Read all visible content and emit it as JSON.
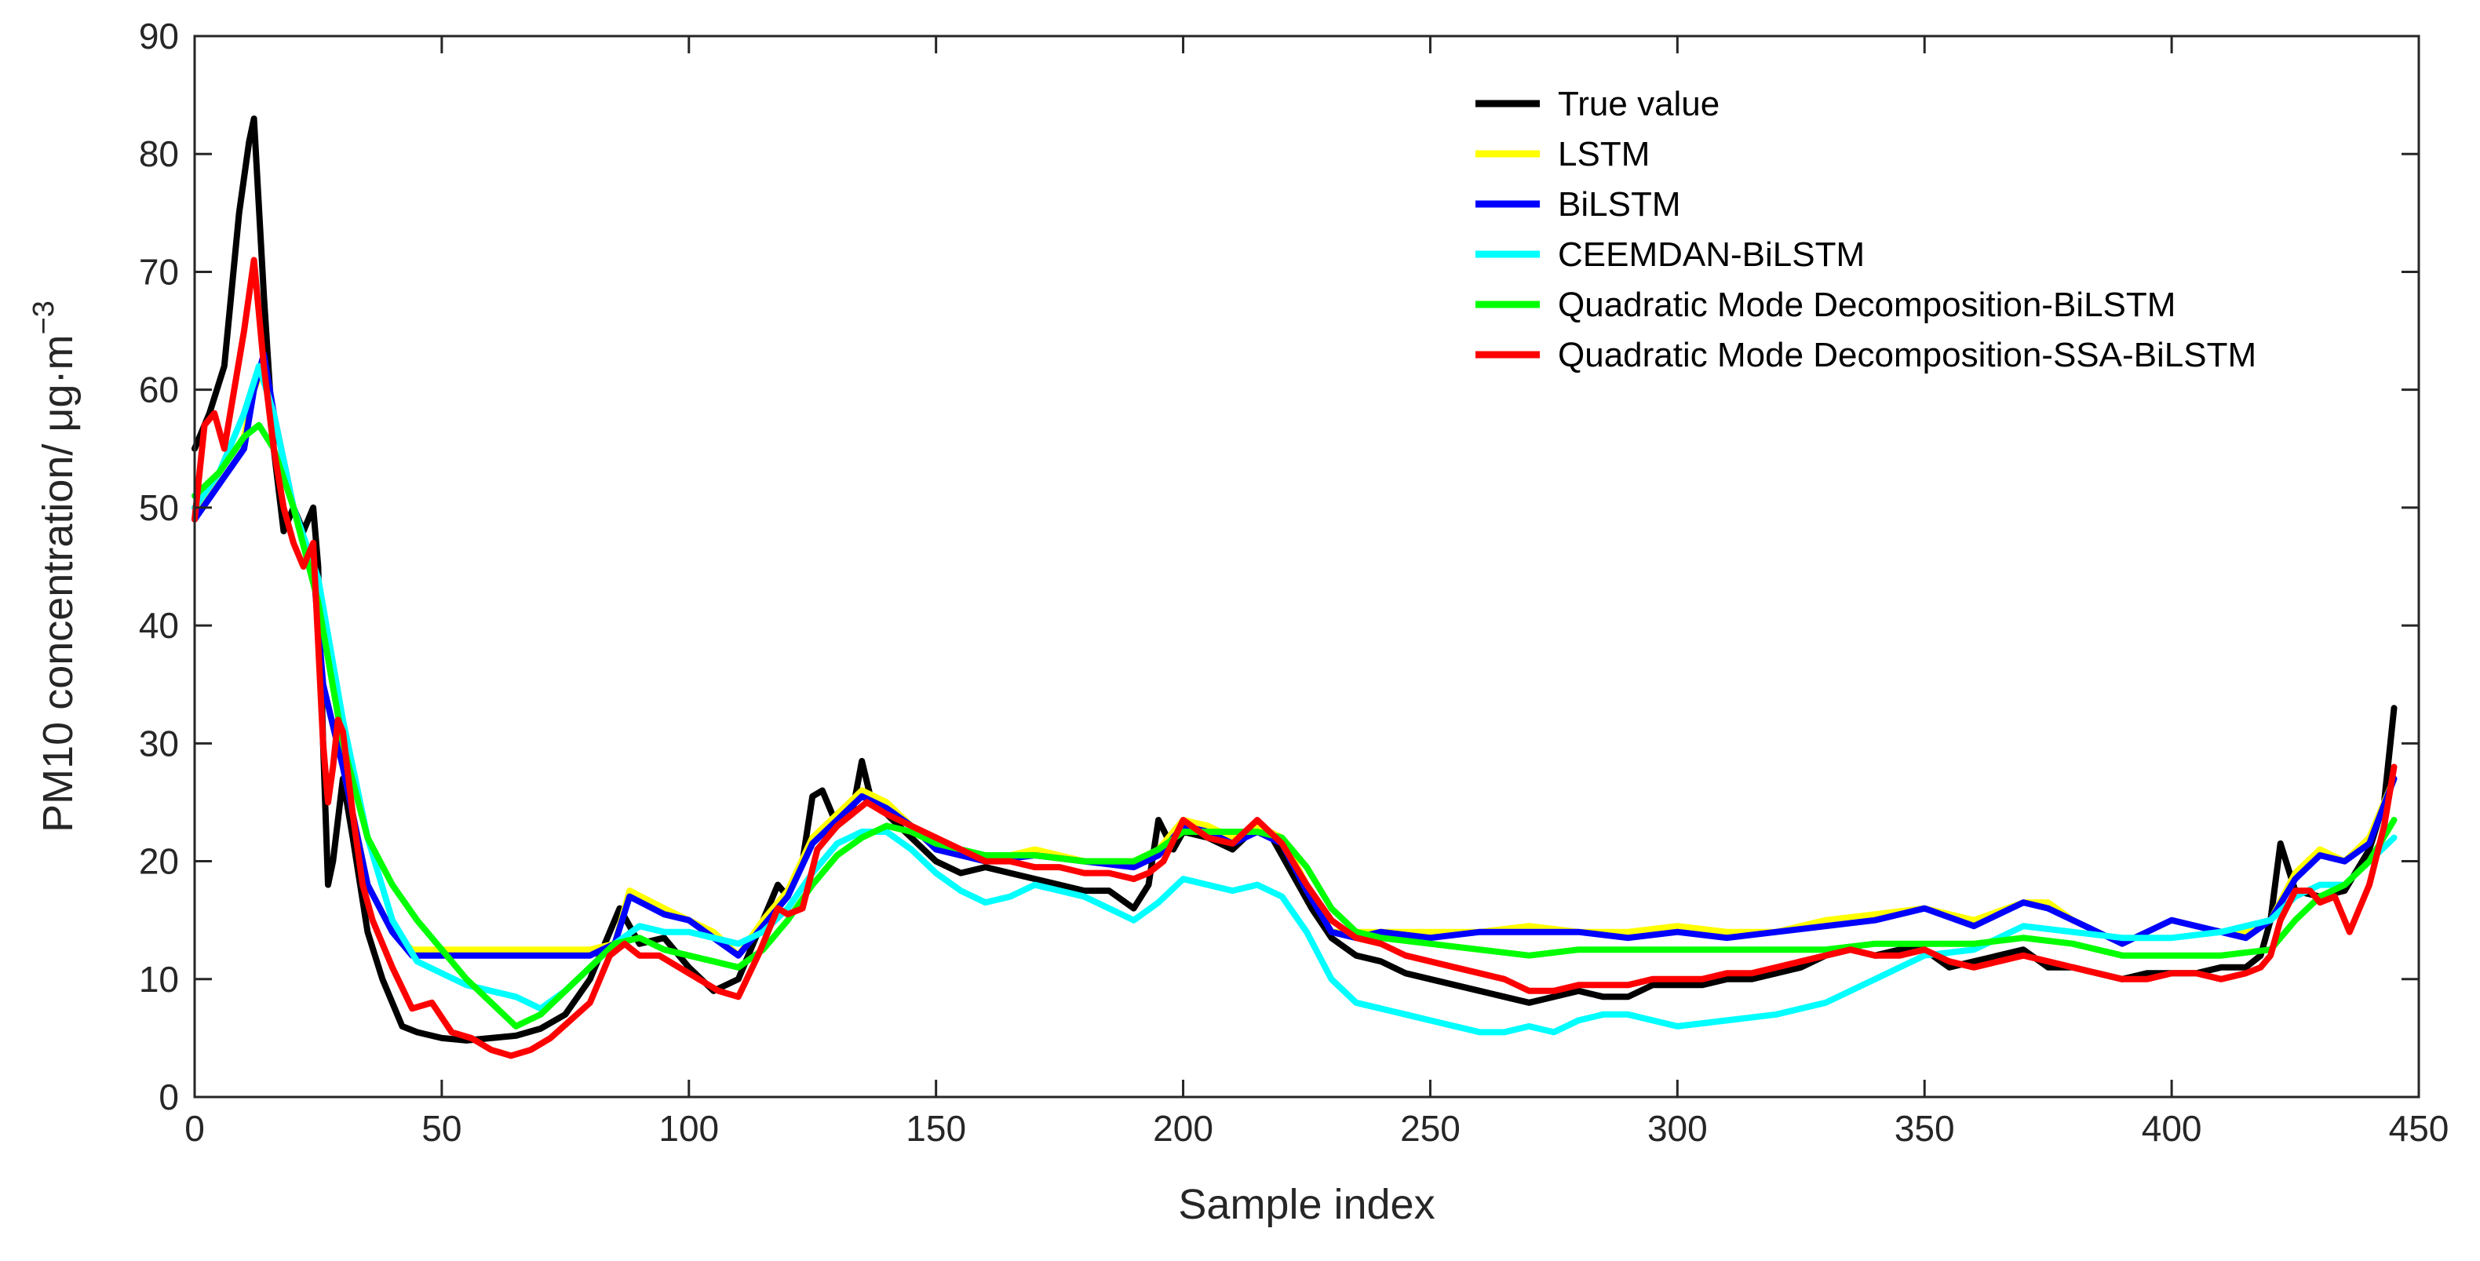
{
  "chart_data": {
    "type": "line",
    "title": "",
    "xlabel": "Sample index",
    "ylabel_main": "PM10 concentration/ μg·m",
    "ylabel_sup": "−3",
    "xlim": [
      0,
      450
    ],
    "ylim": [
      0,
      90
    ],
    "xticks": [
      0,
      50,
      100,
      150,
      200,
      250,
      300,
      350,
      400,
      450
    ],
    "yticks": [
      0,
      10,
      20,
      30,
      40,
      50,
      60,
      70,
      80,
      90
    ],
    "xtick_labels": [
      "0",
      "50",
      "100",
      "150",
      "200",
      "250",
      "300",
      "350",
      "400",
      "450"
    ],
    "ytick_labels": [
      "0",
      "10",
      "20",
      "30",
      "40",
      "50",
      "60",
      "70",
      "80",
      "90"
    ],
    "grid": false,
    "legend_position": "top-right",
    "series": [
      {
        "name": "True value",
        "color": "#000000",
        "x": [
          0,
          3,
          6,
          9,
          11,
          12,
          14,
          16,
          18,
          20,
          22,
          24,
          25,
          26,
          27,
          28,
          30,
          32,
          35,
          38,
          42,
          45,
          50,
          55,
          60,
          65,
          70,
          75,
          80,
          84,
          86,
          90,
          95,
          100,
          105,
          110,
          115,
          118,
          120,
          123,
          125,
          127,
          130,
          133,
          135,
          137,
          140,
          145,
          150,
          155,
          160,
          165,
          170,
          175,
          180,
          185,
          190,
          193,
          195,
          198,
          200,
          205,
          210,
          215,
          218,
          222,
          226,
          230,
          235,
          240,
          245,
          250,
          255,
          260,
          265,
          270,
          275,
          280,
          285,
          290,
          295,
          300,
          305,
          310,
          315,
          320,
          325,
          330,
          335,
          340,
          345,
          350,
          355,
          360,
          365,
          370,
          375,
          380,
          385,
          390,
          395,
          400,
          405,
          410,
          415,
          418,
          420,
          422,
          425,
          430,
          435,
          440,
          443,
          445
        ],
        "values": [
          55,
          58,
          62,
          75,
          81,
          83,
          68,
          55,
          48,
          50,
          48,
          50,
          45,
          30,
          18,
          20,
          27,
          22,
          14,
          10,
          6,
          5.5,
          5,
          4.8,
          5,
          5.2,
          5.8,
          7,
          10,
          14,
          16,
          13,
          13.5,
          11,
          9,
          10,
          15,
          18,
          17,
          20,
          25.5,
          26,
          23,
          24,
          28.5,
          25,
          24,
          22,
          20,
          19,
          19.5,
          19,
          18.5,
          18,
          17.5,
          17.5,
          16,
          18,
          23.5,
          21,
          22.5,
          22,
          21,
          23,
          22,
          19,
          16,
          13.5,
          12,
          11.5,
          10.5,
          10,
          9.5,
          9,
          8.5,
          8,
          8.5,
          9,
          8.5,
          8.5,
          9.5,
          9.5,
          9.5,
          10,
          10,
          10.5,
          11,
          12,
          12.5,
          12,
          12.5,
          12.5,
          11,
          11.5,
          12,
          12.5,
          11,
          11,
          10.5,
          10,
          10.5,
          10.5,
          10.5,
          11,
          11,
          12,
          15,
          21.5,
          17.5,
          17,
          17.5,
          21,
          25,
          33
        ]
      },
      {
        "name": "LSTM",
        "color": "#ffff00",
        "x": [
          0,
          5,
          10,
          12,
          14,
          16,
          20,
          24,
          26,
          30,
          35,
          40,
          44,
          50,
          60,
          70,
          80,
          85,
          88,
          95,
          100,
          105,
          110,
          115,
          120,
          125,
          130,
          135,
          140,
          145,
          150,
          160,
          170,
          180,
          190,
          195,
          200,
          205,
          210,
          215,
          220,
          225,
          230,
          235,
          240,
          250,
          260,
          270,
          280,
          290,
          300,
          310,
          320,
          330,
          340,
          350,
          360,
          370,
          375,
          380,
          390,
          400,
          410,
          415,
          420,
          425,
          430,
          435,
          440,
          445
        ],
        "values": [
          49,
          53,
          56,
          60,
          62,
          58,
          50,
          45,
          35,
          28,
          18,
          14,
          12.5,
          12.5,
          12.5,
          12.5,
          12.5,
          13,
          17.5,
          16,
          15,
          14,
          12,
          15,
          17.5,
          22,
          24,
          26,
          25,
          23,
          21,
          20,
          21,
          20,
          20,
          21,
          23.5,
          23,
          22,
          23,
          22,
          18,
          14,
          14,
          14,
          14,
          14,
          14.5,
          14,
          14,
          14.5,
          14,
          14,
          15,
          15.5,
          16,
          15,
          16.5,
          16.5,
          15,
          13,
          15,
          14,
          14,
          15,
          19,
          21,
          20,
          22,
          27
        ]
      },
      {
        "name": "BiLSTM",
        "color": "#0000ff",
        "x": [
          0,
          5,
          10,
          12,
          14,
          16,
          20,
          24,
          26,
          30,
          35,
          40,
          44,
          50,
          60,
          70,
          80,
          85,
          88,
          95,
          100,
          105,
          110,
          115,
          120,
          125,
          130,
          135,
          140,
          145,
          150,
          160,
          170,
          180,
          190,
          195,
          200,
          205,
          210,
          215,
          220,
          225,
          230,
          235,
          240,
          250,
          260,
          270,
          280,
          290,
          300,
          310,
          320,
          330,
          340,
          350,
          360,
          370,
          375,
          380,
          390,
          400,
          410,
          415,
          420,
          425,
          430,
          435,
          440,
          445
        ],
        "values": [
          49,
          52,
          55,
          60,
          63,
          58,
          50,
          45,
          35,
          28,
          18,
          14,
          12,
          12,
          12,
          12,
          12,
          13,
          17,
          15.5,
          15,
          13.5,
          12,
          14.5,
          17,
          21.5,
          23.5,
          25.5,
          24.5,
          23,
          21,
          20,
          20.5,
          20,
          19.5,
          20.5,
          23,
          22.5,
          21.5,
          22.5,
          21.5,
          17.5,
          14,
          13.5,
          14,
          13.5,
          14,
          14,
          14,
          13.5,
          14,
          13.5,
          14,
          14.5,
          15,
          16,
          14.5,
          16.5,
          16,
          15,
          13,
          15,
          14,
          13.5,
          15,
          18.5,
          20.5,
          20,
          21.5,
          27
        ]
      },
      {
        "name": "CEEMDAN-BiLSTM",
        "color": "#00ffff",
        "x": [
          0,
          5,
          10,
          13,
          16,
          20,
          25,
          30,
          35,
          40,
          45,
          50,
          55,
          60,
          65,
          70,
          75,
          80,
          85,
          90,
          95,
          100,
          105,
          110,
          115,
          120,
          125,
          130,
          135,
          140,
          145,
          150,
          155,
          160,
          165,
          170,
          175,
          180,
          185,
          190,
          195,
          200,
          205,
          210,
          215,
          220,
          225,
          230,
          235,
          240,
          245,
          250,
          255,
          260,
          265,
          270,
          275,
          280,
          285,
          290,
          295,
          300,
          310,
          320,
          330,
          340,
          350,
          360,
          370,
          380,
          390,
          400,
          410,
          420,
          425,
          430,
          435,
          440,
          445
        ],
        "values": [
          50,
          53,
          58,
          62,
          58,
          50,
          44,
          32,
          22,
          15,
          11.5,
          10.5,
          9.5,
          9,
          8.5,
          7.5,
          9,
          11,
          13,
          14.5,
          14,
          14,
          13.5,
          13,
          14,
          16,
          19,
          21.5,
          22.5,
          22.5,
          21,
          19,
          17.5,
          16.5,
          17,
          18,
          17.5,
          17,
          16,
          15,
          16.5,
          18.5,
          18,
          17.5,
          18,
          17,
          14,
          10,
          8,
          7.5,
          7,
          6.5,
          6,
          5.5,
          5.5,
          6,
          5.5,
          6.5,
          7,
          7,
          6.5,
          6,
          6.5,
          7,
          8,
          10,
          12,
          12.5,
          14.5,
          14,
          13.5,
          13.5,
          14,
          15,
          17,
          18,
          18,
          20,
          22
        ]
      },
      {
        "name": "Quadratic Mode Decomposition-BiLSTM",
        "color": "#00ff00",
        "x": [
          0,
          5,
          10,
          13,
          16,
          20,
          25,
          30,
          35,
          40,
          45,
          50,
          55,
          60,
          65,
          70,
          75,
          80,
          85,
          90,
          95,
          100,
          105,
          110,
          115,
          120,
          125,
          130,
          135,
          140,
          145,
          150,
          160,
          170,
          180,
          190,
          195,
          200,
          205,
          210,
          215,
          220,
          225,
          230,
          235,
          240,
          250,
          260,
          270,
          280,
          290,
          300,
          310,
          320,
          330,
          340,
          350,
          360,
          370,
          380,
          390,
          400,
          410,
          420,
          425,
          430,
          435,
          440,
          445
        ],
        "values": [
          51,
          53,
          56,
          57,
          55,
          50,
          42,
          30,
          22,
          18,
          15,
          12.5,
          10,
          8,
          6,
          7,
          9,
          11,
          13,
          13.5,
          12.5,
          12,
          11.5,
          11,
          12.5,
          15,
          18,
          20.5,
          22,
          23,
          22.5,
          21.5,
          20.5,
          20.5,
          20,
          20,
          21,
          22.5,
          22.5,
          22.5,
          22.5,
          22,
          19.5,
          16,
          14,
          13.5,
          13,
          12.5,
          12,
          12.5,
          12.5,
          12.5,
          12.5,
          12.5,
          12.5,
          13,
          13,
          13,
          13.5,
          13,
          12,
          12,
          12,
          12.5,
          15,
          17,
          18,
          20,
          23.5
        ]
      },
      {
        "name": "Quadratic Mode Decomposition-SSA-BiLSTM",
        "color": "#ff0000",
        "x": [
          0,
          2,
          4,
          6,
          8,
          10,
          12,
          14,
          16,
          18,
          20,
          22,
          24,
          26,
          27,
          28,
          29,
          30,
          32,
          34,
          36,
          40,
          44,
          48,
          52,
          56,
          60,
          64,
          68,
          72,
          76,
          80,
          84,
          87,
          90,
          94,
          98,
          102,
          106,
          110,
          114,
          118,
          120,
          123,
          126,
          130,
          133,
          136,
          140,
          145,
          150,
          155,
          160,
          165,
          170,
          175,
          180,
          185,
          190,
          193,
          196,
          200,
          205,
          210,
          215,
          220,
          225,
          230,
          235,
          240,
          245,
          250,
          255,
          260,
          265,
          270,
          275,
          280,
          285,
          290,
          295,
          300,
          305,
          310,
          315,
          320,
          325,
          330,
          335,
          340,
          345,
          350,
          355,
          360,
          365,
          370,
          375,
          380,
          385,
          390,
          395,
          400,
          405,
          410,
          415,
          418,
          420,
          422,
          425,
          428,
          430,
          433,
          436,
          440,
          443,
          445
        ],
        "values": [
          49,
          57,
          58,
          55,
          60,
          65,
          71,
          62,
          55,
          50,
          47,
          45,
          47,
          30,
          25,
          28,
          32,
          31,
          24,
          18,
          15,
          11,
          7.5,
          8,
          5.5,
          5,
          4,
          3.5,
          4,
          5,
          6.5,
          8,
          12,
          13,
          12,
          12,
          11,
          10,
          9,
          8.5,
          12,
          16,
          15.5,
          16,
          21,
          23,
          24,
          25,
          24,
          23,
          22,
          21,
          20,
          20,
          19.5,
          19.5,
          19,
          19,
          18.5,
          19,
          20,
          23.5,
          22,
          21.5,
          23.5,
          21.5,
          18,
          15,
          13.5,
          13,
          12,
          11.5,
          11,
          10.5,
          10,
          9,
          9,
          9.5,
          9.5,
          9.5,
          10,
          10,
          10,
          10.5,
          10.5,
          11,
          11.5,
          12,
          12.5,
          12,
          12,
          12.5,
          11.5,
          11,
          11.5,
          12,
          11.5,
          11,
          10.5,
          10,
          10,
          10.5,
          10.5,
          10,
          10.5,
          11,
          12,
          15,
          17.5,
          17.5,
          16.5,
          17,
          14,
          18,
          23,
          28
        ]
      }
    ]
  }
}
